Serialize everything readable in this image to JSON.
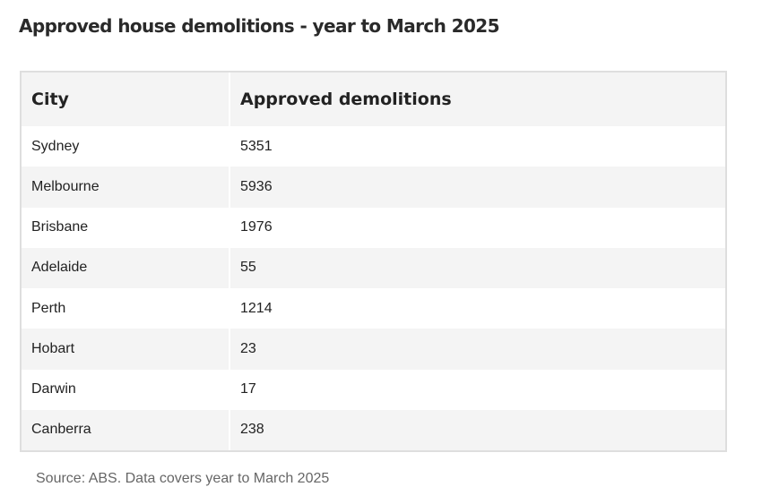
{
  "chart_data": {
    "type": "table",
    "title": "Approved house demolitions - year to March 2025",
    "columns": [
      "City",
      "Approved demolitions"
    ],
    "rows": [
      {
        "city": "Sydney",
        "value": "5351"
      },
      {
        "city": "Melbourne",
        "value": "5936"
      },
      {
        "city": "Brisbane",
        "value": "1976"
      },
      {
        "city": "Adelaide",
        "value": "55"
      },
      {
        "city": "Perth",
        "value": "1214"
      },
      {
        "city": "Hobart",
        "value": "23"
      },
      {
        "city": "Darwin",
        "value": "17"
      },
      {
        "city": "Canberra",
        "value": "238"
      }
    ],
    "source": "Source: ABS. Data covers year to March 2025"
  }
}
